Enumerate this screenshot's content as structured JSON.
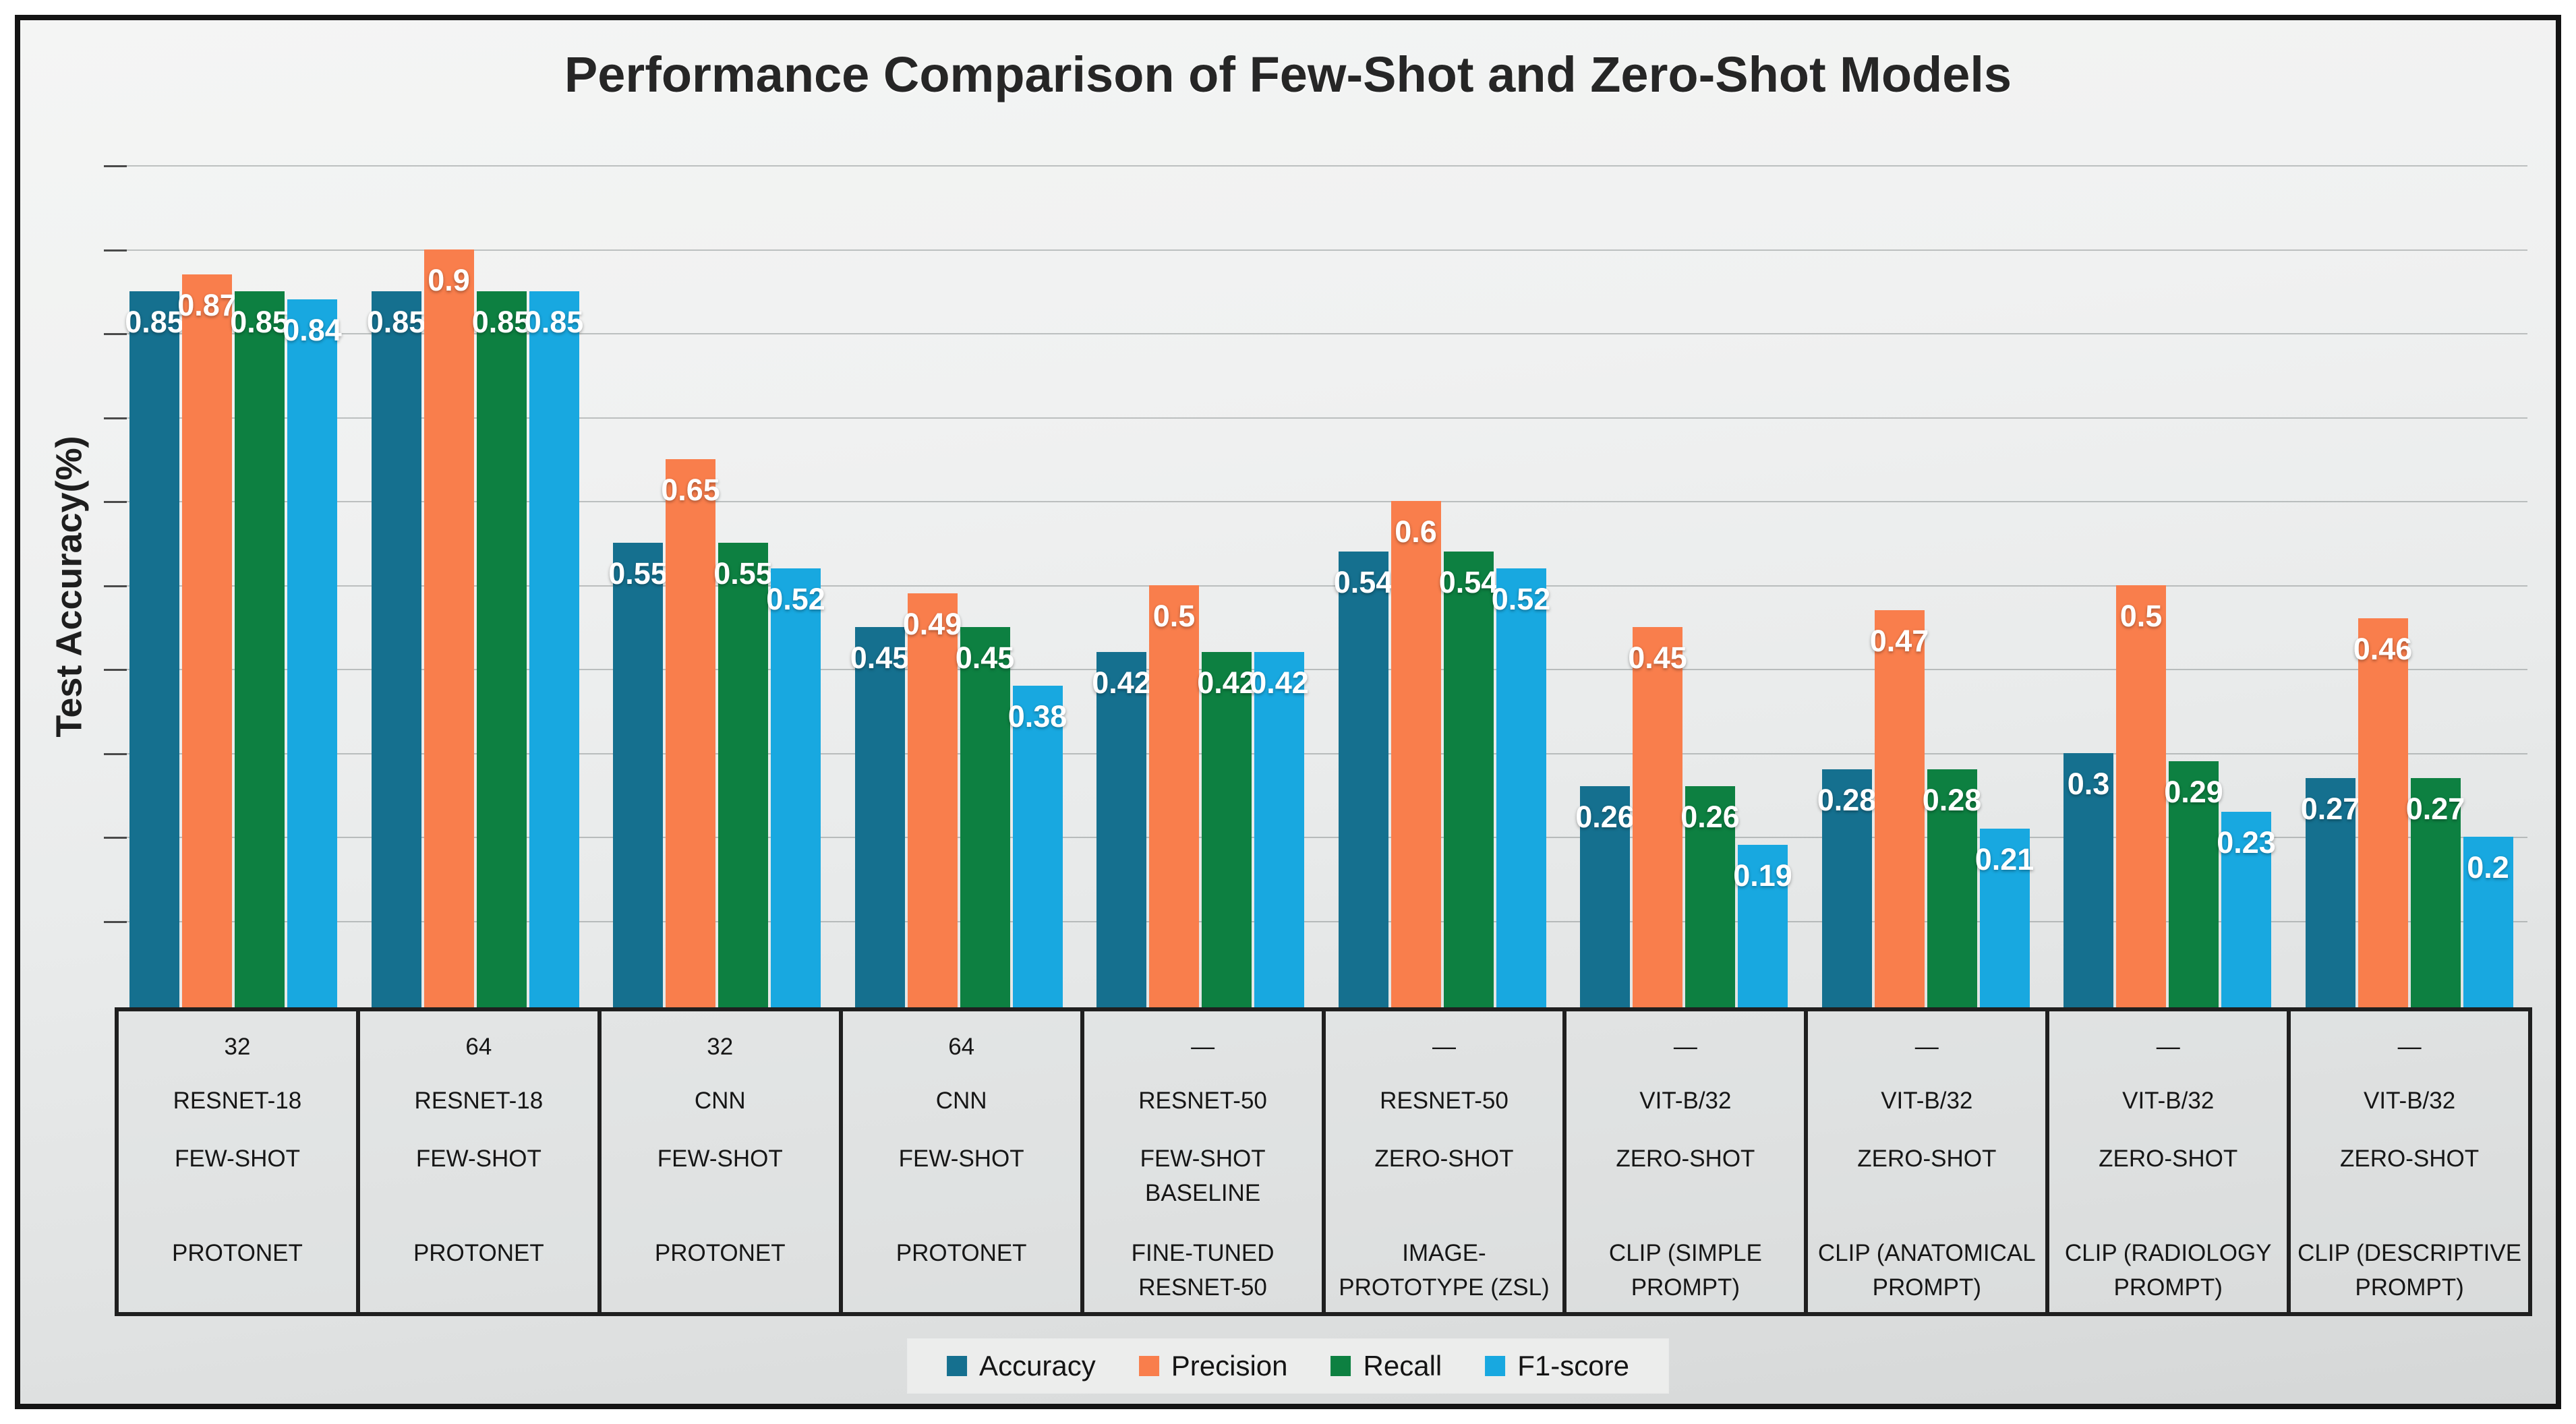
{
  "title": "Performance Comparison of Few-Shot and Zero-Shot Models",
  "y_axis_label": "Test Accuracy(%)",
  "chart_data": {
    "type": "bar",
    "title": "Performance Comparison of Few-Shot and Zero-Shot Models",
    "ylabel": "Test Accuracy(%)",
    "ylim": [
      0,
      1.0
    ],
    "gridline_step": 0.1,
    "grid": "horizontal, unlabeled ticks every 0.1",
    "legend_position": "bottom-center",
    "series": [
      {
        "name": "Accuracy",
        "color": "#15708f",
        "values": [
          0.85,
          0.85,
          0.55,
          0.45,
          0.42,
          0.54,
          0.26,
          0.28,
          0.3,
          0.27
        ]
      },
      {
        "name": "Precision",
        "color": "#f97e4c",
        "values": [
          0.87,
          0.9,
          0.65,
          0.49,
          0.5,
          0.6,
          0.45,
          0.47,
          0.5,
          0.46
        ]
      },
      {
        "name": "Recall",
        "color": "#0d8041",
        "values": [
          0.85,
          0.85,
          0.55,
          0.45,
          0.42,
          0.54,
          0.26,
          0.28,
          0.29,
          0.27
        ]
      },
      {
        "name": "F1-score",
        "color": "#18a8e0",
        "values": [
          0.84,
          0.85,
          0.52,
          0.38,
          0.42,
          0.52,
          0.19,
          0.21,
          0.23,
          0.2
        ]
      }
    ],
    "bar_value_labels": {
      "Accuracy": [
        "0.85",
        "0.85",
        "0.55",
        "0.45",
        "0.42",
        "0.54",
        "0.26",
        "0.28",
        "0.3",
        "0.27"
      ],
      "Precision": [
        "0.87",
        "0.9",
        "0.65",
        "0.49",
        "0.5",
        "0.6",
        "0.45",
        "0.47",
        "0.5",
        "0.46"
      ],
      "Recall": [
        "0.85",
        "0.85",
        "0.55",
        "0.45",
        "0.42",
        "0.54",
        "0.26",
        "0.28",
        "0.29",
        "0.27"
      ],
      "F1-score": [
        "0.84",
        "0.85",
        "0.52",
        "0.38",
        "0.42",
        "0.52",
        "0.19",
        "0.21",
        "0.23",
        "0.2"
      ]
    },
    "groups": [
      {
        "shots": "32",
        "backbone": "RESNET-18",
        "paradigm": "FEW-SHOT",
        "method": "PROTONET"
      },
      {
        "shots": "64",
        "backbone": "RESNET-18",
        "paradigm": "FEW-SHOT",
        "method": "PROTONET"
      },
      {
        "shots": "32",
        "backbone": "CNN",
        "paradigm": "FEW-SHOT",
        "method": "PROTONET"
      },
      {
        "shots": "64",
        "backbone": "CNN",
        "paradigm": "FEW-SHOT",
        "method": "PROTONET"
      },
      {
        "shots": "—",
        "backbone": "RESNET-50",
        "paradigm": "FEW-SHOT BASELINE",
        "method": "FINE-TUNED RESNET-50"
      },
      {
        "shots": "—",
        "backbone": "RESNET-50",
        "paradigm": "ZERO-SHOT",
        "method": "IMAGE-PROTOTYPE (ZSL)"
      },
      {
        "shots": "—",
        "backbone": "VIT-B/32",
        "paradigm": "ZERO-SHOT",
        "method": "CLIP (SIMPLE PROMPT)"
      },
      {
        "shots": "—",
        "backbone": "VIT-B/32",
        "paradigm": "ZERO-SHOT",
        "method": "CLIP (ANATOMICAL PROMPT)"
      },
      {
        "shots": "—",
        "backbone": "VIT-B/32",
        "paradigm": "ZERO-SHOT",
        "method": "CLIP (RADIOLOGY PROMPT)"
      },
      {
        "shots": "—",
        "backbone": "VIT-B/32",
        "paradigm": "ZERO-SHOT",
        "method": "CLIP (DESCRIPTIVE PROMPT)"
      }
    ]
  },
  "legend": {
    "items": [
      "Accuracy",
      "Precision",
      "Recall",
      "F1-score"
    ]
  },
  "colors": {
    "accuracy": "#15708f",
    "precision": "#f97e4c",
    "recall": "#0d8041",
    "f1_score": "#18a8e0",
    "frame_border": "#141414",
    "table_border": "#1f1f1f",
    "gridline": "#7d8282"
  }
}
